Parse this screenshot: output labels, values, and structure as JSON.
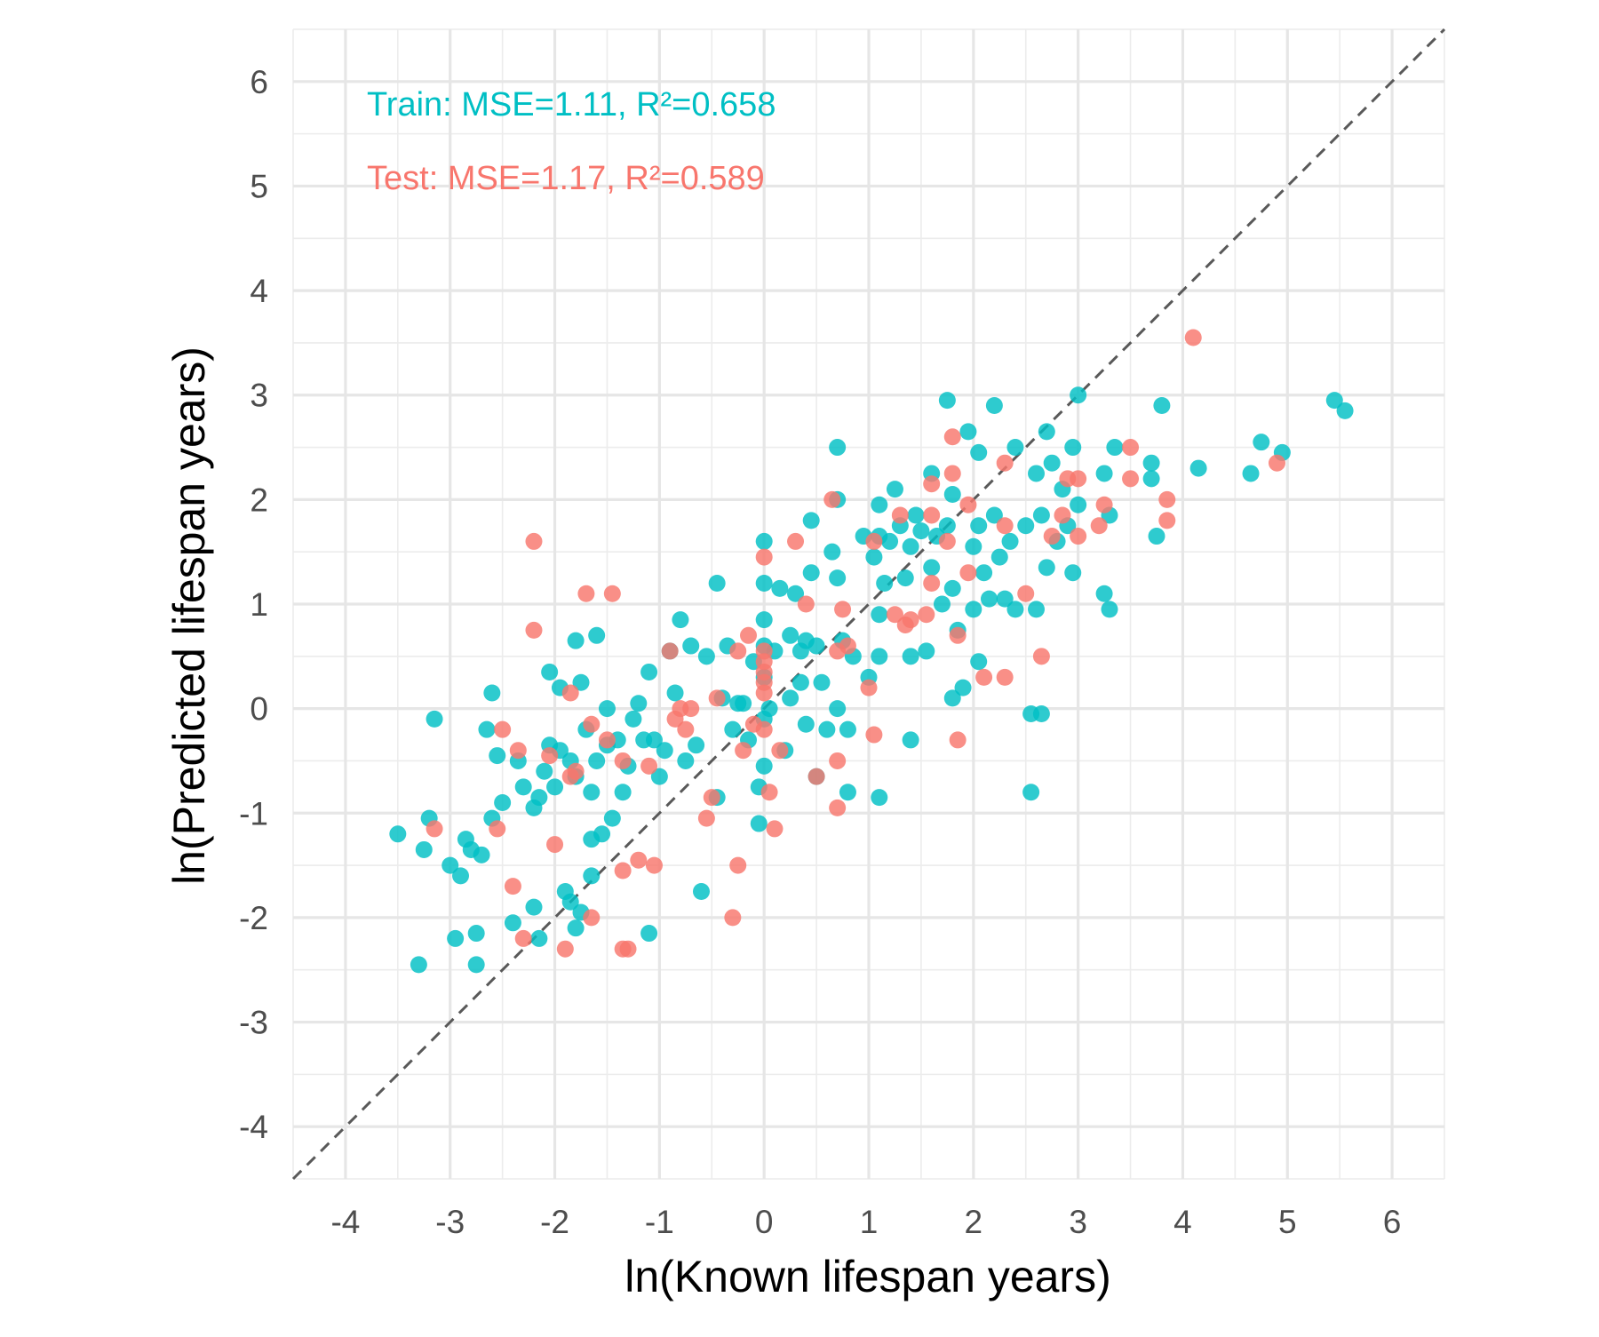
{
  "chart_data": {
    "type": "scatter",
    "title": "",
    "xlabel": "ln(Known lifespan years)",
    "ylabel": "ln(Predicted lifespan years)",
    "xlim": [
      -4.5,
      6.5
    ],
    "ylim": [
      -4.5,
      6.5
    ],
    "x_ticks": [
      -4,
      -3,
      -2,
      -1,
      0,
      1,
      2,
      3,
      4,
      5,
      6
    ],
    "y_ticks": [
      -4,
      -3,
      -2,
      -1,
      0,
      1,
      2,
      3,
      4,
      5,
      6
    ],
    "x_tick_labels": [
      "-4",
      "-3",
      "-2",
      "-1",
      "0",
      "1",
      "2",
      "3",
      "4",
      "5",
      "6"
    ],
    "y_tick_labels": [
      "-4",
      "-3",
      "-2",
      "-1",
      "0",
      "1",
      "2",
      "3",
      "4",
      "5",
      "6"
    ],
    "grid": true,
    "legend": "none",
    "reference_line": {
      "style": "dashed",
      "slope": 1,
      "intercept": 0,
      "color": "#595959"
    },
    "annotations": {
      "train": {
        "text": "Train: MSE=1.11, R²=0.658",
        "color": "#00BFC4"
      },
      "test": {
        "text": "Test: MSE=1.17, R²=0.589",
        "color": "#F8766D"
      }
    },
    "series": [
      {
        "color": "#00BFC4",
        "points": [
          [
            -3.5,
            -1.2
          ],
          [
            -3.3,
            -2.45
          ],
          [
            -3.25,
            -1.35
          ],
          [
            -3.2,
            -1.05
          ],
          [
            -3.15,
            -0.1
          ],
          [
            -3.0,
            -1.5
          ],
          [
            -2.95,
            -2.2
          ],
          [
            -2.9,
            -1.6
          ],
          [
            -2.85,
            -1.25
          ],
          [
            -2.8,
            -1.35
          ],
          [
            -2.75,
            -2.15
          ],
          [
            -2.75,
            -2.45
          ],
          [
            -2.7,
            -1.4
          ],
          [
            -2.65,
            -0.2
          ],
          [
            -2.6,
            0.15
          ],
          [
            -2.6,
            -1.05
          ],
          [
            -2.55,
            -0.45
          ],
          [
            -2.5,
            -0.9
          ],
          [
            -2.4,
            -2.05
          ],
          [
            -2.35,
            -0.5
          ],
          [
            -2.3,
            -0.75
          ],
          [
            -2.2,
            -0.95
          ],
          [
            -2.2,
            -1.9
          ],
          [
            -2.15,
            -2.2
          ],
          [
            -2.15,
            -0.85
          ],
          [
            -2.1,
            -0.6
          ],
          [
            -2.05,
            0.35
          ],
          [
            -2.05,
            -0.35
          ],
          [
            -2.0,
            -0.75
          ],
          [
            -1.95,
            -0.4
          ],
          [
            -1.95,
            0.2
          ],
          [
            -1.9,
            -1.75
          ],
          [
            -1.85,
            -1.85
          ],
          [
            -1.85,
            -0.5
          ],
          [
            -1.8,
            0.65
          ],
          [
            -1.8,
            -0.65
          ],
          [
            -1.8,
            -2.1
          ],
          [
            -1.75,
            0.25
          ],
          [
            -1.75,
            -1.95
          ],
          [
            -1.7,
            -0.2
          ],
          [
            -1.65,
            -1.6
          ],
          [
            -1.65,
            -1.25
          ],
          [
            -1.65,
            -0.8
          ],
          [
            -1.6,
            0.7
          ],
          [
            -1.6,
            -0.5
          ],
          [
            -1.55,
            -1.2
          ],
          [
            -1.5,
            -0.35
          ],
          [
            -1.5,
            0.0
          ],
          [
            -1.45,
            -1.05
          ],
          [
            -1.4,
            -0.3
          ],
          [
            -1.35,
            -0.8
          ],
          [
            -1.3,
            -0.55
          ],
          [
            -1.25,
            -0.1
          ],
          [
            -1.2,
            0.05
          ],
          [
            -1.15,
            -0.3
          ],
          [
            -1.1,
            0.35
          ],
          [
            -1.1,
            -2.15
          ],
          [
            -1.05,
            -0.3
          ],
          [
            -1.0,
            -0.65
          ],
          [
            -0.95,
            -0.4
          ],
          [
            -0.9,
            0.55
          ],
          [
            -0.85,
            0.15
          ],
          [
            -0.8,
            0.85
          ],
          [
            -0.75,
            -0.5
          ],
          [
            -0.7,
            0.6
          ],
          [
            -0.65,
            -0.35
          ],
          [
            -0.6,
            -1.75
          ],
          [
            -0.55,
            0.5
          ],
          [
            -0.45,
            -0.85
          ],
          [
            -0.45,
            1.2
          ],
          [
            -0.4,
            0.1
          ],
          [
            -0.35,
            0.6
          ],
          [
            -0.3,
            -0.2
          ],
          [
            -0.25,
            0.05
          ],
          [
            -0.2,
            0.05
          ],
          [
            -0.15,
            -0.3
          ],
          [
            -0.1,
            0.45
          ],
          [
            -0.05,
            -0.75
          ],
          [
            -0.05,
            -1.1
          ],
          [
            0.0,
            1.6
          ],
          [
            0.0,
            1.2
          ],
          [
            0.0,
            0.85
          ],
          [
            0.0,
            0.6
          ],
          [
            0.0,
            0.3
          ],
          [
            0.0,
            -0.1
          ],
          [
            0.0,
            -0.55
          ],
          [
            0.05,
            0.0
          ],
          [
            0.1,
            0.55
          ],
          [
            0.15,
            1.15
          ],
          [
            0.2,
            -0.4
          ],
          [
            0.25,
            0.7
          ],
          [
            0.25,
            0.1
          ],
          [
            0.3,
            1.1
          ],
          [
            0.35,
            0.55
          ],
          [
            0.35,
            0.25
          ],
          [
            0.4,
            0.65
          ],
          [
            0.4,
            -0.15
          ],
          [
            0.45,
            1.8
          ],
          [
            0.45,
            1.3
          ],
          [
            0.5,
            0.6
          ],
          [
            0.5,
            -0.65
          ],
          [
            0.55,
            0.25
          ],
          [
            0.6,
            -0.2
          ],
          [
            0.65,
            1.5
          ],
          [
            0.7,
            2.5
          ],
          [
            0.7,
            2.0
          ],
          [
            0.7,
            1.25
          ],
          [
            0.7,
            0.0
          ],
          [
            0.75,
            0.65
          ],
          [
            0.8,
            -0.8
          ],
          [
            0.8,
            -0.2
          ],
          [
            0.85,
            0.5
          ],
          [
            0.95,
            1.65
          ],
          [
            1.0,
            0.3
          ],
          [
            1.05,
            1.45
          ],
          [
            1.1,
            1.95
          ],
          [
            1.1,
            1.65
          ],
          [
            1.1,
            0.9
          ],
          [
            1.1,
            0.5
          ],
          [
            1.1,
            -0.85
          ],
          [
            1.15,
            1.2
          ],
          [
            1.2,
            1.6
          ],
          [
            1.25,
            2.1
          ],
          [
            1.3,
            1.75
          ],
          [
            1.35,
            1.25
          ],
          [
            1.4,
            1.55
          ],
          [
            1.4,
            0.5
          ],
          [
            1.4,
            -0.3
          ],
          [
            1.45,
            1.85
          ],
          [
            1.5,
            1.7
          ],
          [
            1.55,
            0.55
          ],
          [
            1.6,
            2.25
          ],
          [
            1.6,
            1.35
          ],
          [
            1.65,
            1.65
          ],
          [
            1.7,
            1.0
          ],
          [
            1.75,
            2.95
          ],
          [
            1.75,
            1.75
          ],
          [
            1.8,
            2.05
          ],
          [
            1.8,
            1.15
          ],
          [
            1.8,
            0.1
          ],
          [
            1.85,
            0.75
          ],
          [
            1.9,
            0.2
          ],
          [
            1.95,
            2.65
          ],
          [
            2.0,
            1.55
          ],
          [
            2.0,
            0.95
          ],
          [
            2.05,
            2.45
          ],
          [
            2.05,
            1.75
          ],
          [
            2.05,
            0.45
          ],
          [
            2.1,
            1.3
          ],
          [
            2.15,
            1.05
          ],
          [
            2.2,
            2.9
          ],
          [
            2.2,
            1.85
          ],
          [
            2.25,
            1.45
          ],
          [
            2.3,
            1.05
          ],
          [
            2.35,
            1.6
          ],
          [
            2.4,
            2.5
          ],
          [
            2.4,
            0.95
          ],
          [
            2.5,
            1.75
          ],
          [
            2.55,
            -0.05
          ],
          [
            2.55,
            -0.8
          ],
          [
            2.6,
            2.25
          ],
          [
            2.6,
            0.95
          ],
          [
            2.65,
            1.85
          ],
          [
            2.65,
            -0.05
          ],
          [
            2.7,
            2.65
          ],
          [
            2.7,
            1.35
          ],
          [
            2.75,
            2.35
          ],
          [
            2.8,
            1.6
          ],
          [
            2.85,
            2.1
          ],
          [
            2.9,
            1.75
          ],
          [
            2.95,
            2.5
          ],
          [
            2.95,
            1.3
          ],
          [
            3.0,
            3.0
          ],
          [
            3.0,
            1.95
          ],
          [
            3.25,
            2.25
          ],
          [
            3.25,
            1.1
          ],
          [
            3.3,
            1.85
          ],
          [
            3.3,
            0.95
          ],
          [
            3.35,
            2.5
          ],
          [
            3.7,
            2.35
          ],
          [
            3.7,
            2.2
          ],
          [
            3.75,
            1.65
          ],
          [
            3.8,
            2.9
          ],
          [
            4.15,
            2.3
          ],
          [
            4.65,
            2.25
          ],
          [
            4.75,
            2.55
          ],
          [
            4.95,
            2.45
          ],
          [
            5.45,
            2.95
          ],
          [
            5.55,
            2.85
          ]
        ]
      },
      {
        "color": "#F8766D",
        "points": [
          [
            -3.15,
            -1.15
          ],
          [
            -2.55,
            -1.15
          ],
          [
            -2.5,
            -0.2
          ],
          [
            -2.4,
            -1.7
          ],
          [
            -2.35,
            -0.4
          ],
          [
            -2.3,
            -2.2
          ],
          [
            -2.2,
            0.75
          ],
          [
            -2.2,
            1.6
          ],
          [
            -2.05,
            -0.45
          ],
          [
            -2.0,
            -1.3
          ],
          [
            -1.9,
            -2.3
          ],
          [
            -1.85,
            0.15
          ],
          [
            -1.85,
            -0.65
          ],
          [
            -1.8,
            -0.6
          ],
          [
            -1.7,
            1.1
          ],
          [
            -1.65,
            -2.0
          ],
          [
            -1.65,
            -0.15
          ],
          [
            -1.5,
            -0.3
          ],
          [
            -1.45,
            1.1
          ],
          [
            -1.35,
            -1.55
          ],
          [
            -1.35,
            -2.3
          ],
          [
            -1.35,
            -0.5
          ],
          [
            -1.3,
            -2.3
          ],
          [
            -1.2,
            -1.45
          ],
          [
            -1.1,
            -0.55
          ],
          [
            -1.05,
            -1.5
          ],
          [
            -0.9,
            0.55
          ],
          [
            -0.85,
            -0.1
          ],
          [
            -0.8,
            0.0
          ],
          [
            -0.75,
            -0.2
          ],
          [
            -0.7,
            0.0
          ],
          [
            -0.55,
            -1.05
          ],
          [
            -0.5,
            -0.85
          ],
          [
            -0.45,
            0.1
          ],
          [
            -0.3,
            -2.0
          ],
          [
            -0.25,
            -1.5
          ],
          [
            -0.25,
            0.55
          ],
          [
            -0.2,
            -0.4
          ],
          [
            -0.15,
            0.7
          ],
          [
            -0.1,
            -0.15
          ],
          [
            0.0,
            1.45
          ],
          [
            0.0,
            0.55
          ],
          [
            0.0,
            0.45
          ],
          [
            0.0,
            0.35
          ],
          [
            0.0,
            0.25
          ],
          [
            0.0,
            0.15
          ],
          [
            0.0,
            -0.2
          ],
          [
            0.05,
            -0.8
          ],
          [
            0.1,
            -1.15
          ],
          [
            0.15,
            -0.4
          ],
          [
            0.3,
            1.6
          ],
          [
            0.4,
            1.0
          ],
          [
            0.5,
            -0.65
          ],
          [
            0.65,
            2.0
          ],
          [
            0.7,
            0.55
          ],
          [
            0.7,
            -0.5
          ],
          [
            0.7,
            -0.95
          ],
          [
            0.75,
            0.95
          ],
          [
            0.8,
            0.6
          ],
          [
            1.0,
            0.2
          ],
          [
            1.05,
            -0.25
          ],
          [
            1.05,
            1.6
          ],
          [
            1.25,
            0.9
          ],
          [
            1.3,
            1.85
          ],
          [
            1.35,
            0.8
          ],
          [
            1.4,
            0.85
          ],
          [
            1.55,
            0.9
          ],
          [
            1.6,
            1.85
          ],
          [
            1.6,
            2.15
          ],
          [
            1.6,
            1.2
          ],
          [
            1.75,
            1.6
          ],
          [
            1.8,
            2.6
          ],
          [
            1.8,
            2.25
          ],
          [
            1.85,
            0.7
          ],
          [
            1.85,
            -0.3
          ],
          [
            1.95,
            1.95
          ],
          [
            1.95,
            1.3
          ],
          [
            2.1,
            0.3
          ],
          [
            2.3,
            1.75
          ],
          [
            2.3,
            2.35
          ],
          [
            2.3,
            0.3
          ],
          [
            2.5,
            1.1
          ],
          [
            2.65,
            0.5
          ],
          [
            2.75,
            1.65
          ],
          [
            2.85,
            1.85
          ],
          [
            2.9,
            2.2
          ],
          [
            3.0,
            2.2
          ],
          [
            3.0,
            1.65
          ],
          [
            3.2,
            1.75
          ],
          [
            3.25,
            1.95
          ],
          [
            3.5,
            2.5
          ],
          [
            3.5,
            2.2
          ],
          [
            3.85,
            2.0
          ],
          [
            3.85,
            1.8
          ],
          [
            4.1,
            3.55
          ],
          [
            4.9,
            2.35
          ]
        ]
      }
    ]
  }
}
